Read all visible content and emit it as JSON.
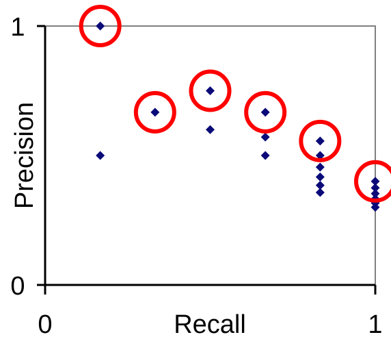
{
  "chart_data": {
    "type": "scatter",
    "title": "",
    "xlabel": "Recall",
    "ylabel": "Precision",
    "xlim": [
      0,
      1
    ],
    "ylim": [
      0,
      1
    ],
    "x_tick_labels": [
      "0",
      "1"
    ],
    "y_tick_labels": [
      "0",
      "1"
    ],
    "grid": false,
    "legend": "none",
    "colors": {
      "points": "#0a0a78",
      "highlight": "#ff0000",
      "plot_border": "#808080",
      "axis": "#000000"
    },
    "series": [
      {
        "points": [
          [
            0.167,
            1.0
          ],
          [
            0.167,
            0.5
          ],
          [
            0.333,
            0.667
          ],
          [
            0.5,
            0.75
          ],
          [
            0.5,
            0.6
          ],
          [
            0.667,
            0.667
          ],
          [
            0.667,
            0.571
          ],
          [
            0.667,
            0.5
          ],
          [
            0.833,
            0.556
          ],
          [
            0.833,
            0.5
          ],
          [
            0.833,
            0.455
          ],
          [
            0.833,
            0.417
          ],
          [
            0.833,
            0.385
          ],
          [
            0.833,
            0.357
          ],
          [
            1.0,
            0.4
          ],
          [
            1.0,
            0.375
          ],
          [
            1.0,
            0.353
          ],
          [
            1.0,
            0.333
          ],
          [
            1.0,
            0.316
          ],
          [
            1.0,
            0.3
          ]
        ]
      }
    ],
    "highlighted_points": [
      [
        0.167,
        1.0
      ],
      [
        0.333,
        0.667
      ],
      [
        0.5,
        0.75
      ],
      [
        0.667,
        0.667
      ],
      [
        0.833,
        0.556
      ],
      [
        1.0,
        0.4
      ]
    ]
  }
}
